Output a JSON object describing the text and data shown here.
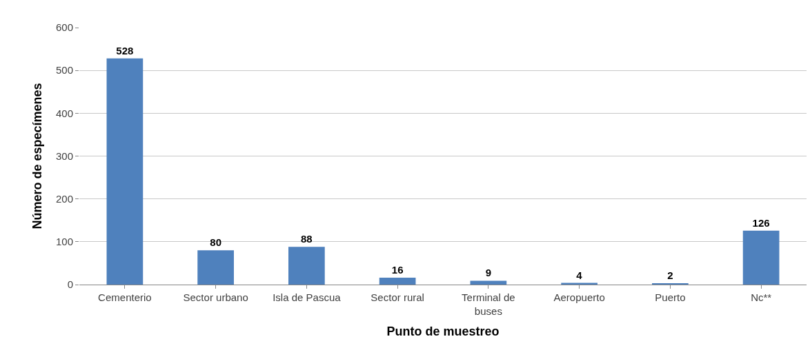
{
  "chart_data": {
    "type": "bar",
    "xlabel": "Punto de muestreo",
    "ylabel": "Número de especímenes",
    "categories": [
      "Cementerio",
      "Sector urbano",
      "Isla de Pascua",
      "Sector rural",
      "Terminal de buses",
      "Aeropuerto",
      "Puerto",
      "Nc**"
    ],
    "values": [
      528,
      80,
      88,
      16,
      9,
      4,
      2,
      126
    ],
    "color": "#4f81bd",
    "ylim": [
      0,
      600
    ],
    "yticks": [
      0,
      100,
      200,
      300,
      400,
      500,
      600
    ],
    "grid": "y",
    "data_labels": true,
    "legend": false
  }
}
